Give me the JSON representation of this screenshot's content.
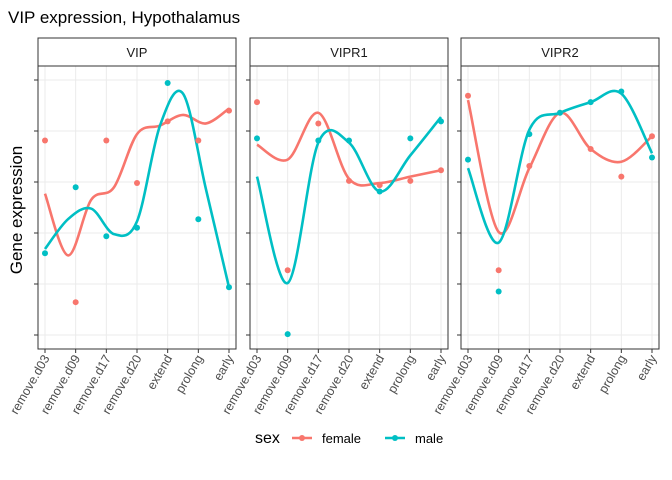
{
  "chart_data": {
    "type": "scatter",
    "title": "VIP expression, Hypothalamus",
    "xlabel": "",
    "ylabel": "Gene expression",
    "categories": [
      "remove.d03",
      "remove.d09",
      "remove.d17",
      "remove.d20",
      "extend",
      "prolong",
      "early"
    ],
    "grid": true,
    "legend": {
      "title": "sex",
      "position": "bottom",
      "entries": [
        {
          "name": "female",
          "color": "#F8766D"
        },
        {
          "name": "male",
          "color": "#00BFC4"
        }
      ]
    },
    "panels": [
      {
        "strip": "VIP",
        "series": [
          {
            "name": "female",
            "values": [
              0.73,
              -0.03,
              0.73,
              0.53,
              0.82,
              0.73,
              0.87
            ],
            "smooth": [
              0.48,
              0.19,
              0.45,
              0.51,
              0.76,
              0.8,
              0.85,
              0.81,
              0.88
            ]
          },
          {
            "name": "male",
            "values": [
              0.2,
              0.51,
              0.28,
              0.32,
              1.0,
              0.36,
              0.04
            ],
            "smooth": [
              0.22,
              0.36,
              0.41,
              0.29,
              0.35,
              0.8,
              0.95,
              0.5,
              0.04
            ]
          }
        ]
      },
      {
        "strip": "VIPR1",
        "series": [
          {
            "name": "female",
            "values": [
              0.91,
              0.12,
              0.81,
              0.54,
              0.52,
              0.54,
              0.59
            ],
            "smooth": [
              0.71,
              0.64,
              0.86,
              0.55,
              0.53,
              0.56,
              0.59
            ]
          },
          {
            "name": "male",
            "values": [
              0.74,
              -0.18,
              0.73,
              0.73,
              0.49,
              0.74,
              0.82
            ],
            "smooth": [
              0.56,
              0.06,
              0.72,
              0.72,
              0.49,
              0.66,
              0.84
            ]
          }
        ]
      },
      {
        "strip": "VIPR2",
        "series": [
          {
            "name": "female",
            "values": [
              0.94,
              0.12,
              0.61,
              0.86,
              0.69,
              0.56,
              0.75
            ],
            "smooth": [
              0.92,
              0.3,
              0.6,
              0.86,
              0.69,
              0.63,
              0.75
            ]
          },
          {
            "name": "male",
            "values": [
              0.64,
              0.02,
              0.76,
              0.86,
              0.91,
              0.96,
              0.65
            ],
            "smooth": [
              0.6,
              0.25,
              0.78,
              0.86,
              0.91,
              0.95,
              0.67
            ]
          }
        ]
      }
    ]
  }
}
